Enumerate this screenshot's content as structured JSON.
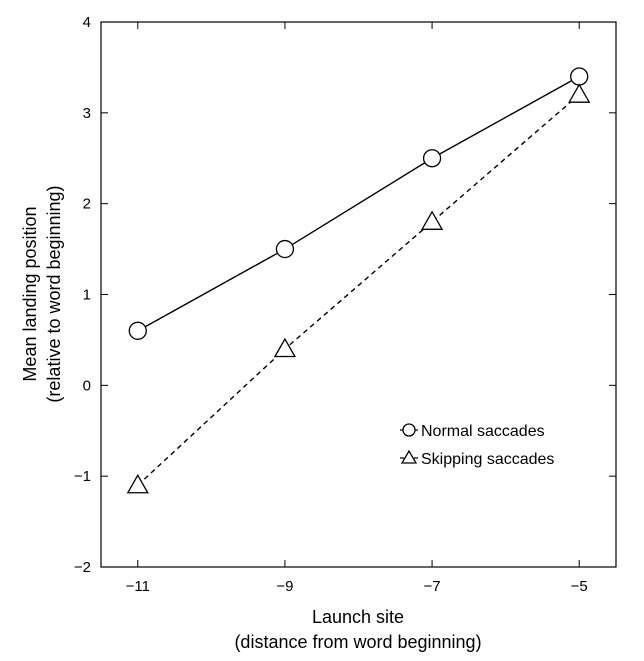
{
  "chart_data": {
    "type": "line",
    "xlabel": [
      "Launch site",
      "(distance from word beginning)"
    ],
    "ylabel": [
      "Mean landing position",
      "(relative to word beginning)"
    ],
    "xlim": [
      -11.5,
      -4.5
    ],
    "ylim": [
      -2,
      4
    ],
    "xticks": [
      -11,
      -9,
      -7,
      -5
    ],
    "xtick_labels": [
      "−11",
      "−9",
      "−7",
      "−5"
    ],
    "yticks": [
      -2,
      -1,
      0,
      1,
      2,
      3,
      4
    ],
    "ytick_labels": [
      "−2",
      "−1",
      "0",
      "1",
      "2",
      "3",
      "4"
    ],
    "grid": false,
    "legend_position": "right",
    "series": [
      {
        "name": "Normal saccades",
        "marker": "circle",
        "line_style": "solid",
        "color": "#000000",
        "x": [
          -11,
          -9,
          -7,
          -5
        ],
        "y": [
          0.6,
          1.5,
          2.5,
          3.4
        ]
      },
      {
        "name": "Skipping saccades",
        "marker": "triangle",
        "line_style": "dashed",
        "color": "#000000",
        "x": [
          -11,
          -9,
          -7,
          -5
        ],
        "y": [
          -1.1,
          0.4,
          1.8,
          3.2
        ]
      }
    ]
  }
}
